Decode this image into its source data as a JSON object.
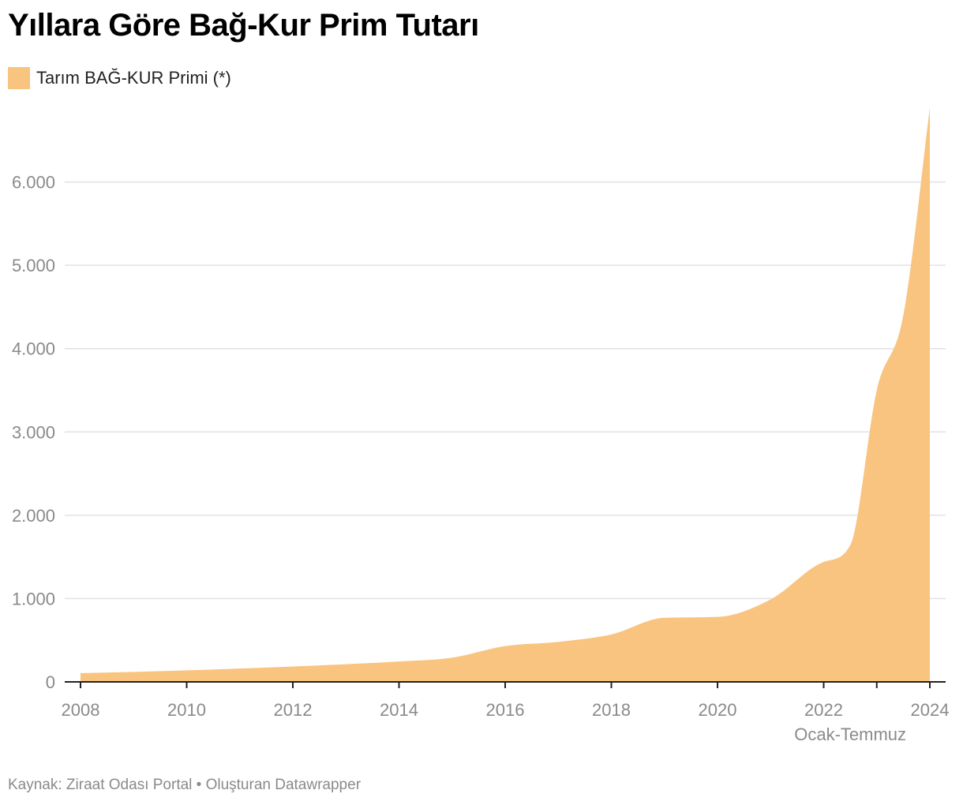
{
  "title": "Yıllara Göre Bağ-Kur Prim Tutarı",
  "legend": {
    "label": "Tarım BAĞ-KUR Primi (*)",
    "color": "#f9c47f"
  },
  "footer": "Kaynak: Ziraat Odası Portal • Oluşturan Datawrapper",
  "chart_data": {
    "type": "area",
    "title": "Yıllara Göre Bağ-Kur Prim Tutarı",
    "xlabel": "",
    "ylabel": "",
    "series": [
      {
        "name": "Tarım BAĞ-KUR Primi (*)",
        "color": "#f9c47f",
        "points": [
          {
            "x": 2008,
            "y": 105
          },
          {
            "x": 2009,
            "y": 120
          },
          {
            "x": 2010,
            "y": 138
          },
          {
            "x": 2011,
            "y": 160
          },
          {
            "x": 2012,
            "y": 185
          },
          {
            "x": 2013,
            "y": 212
          },
          {
            "x": 2014,
            "y": 245
          },
          {
            "x": 2015,
            "y": 290
          },
          {
            "x": 2016,
            "y": 430
          },
          {
            "x": 2017,
            "y": 480
          },
          {
            "x": 2018,
            "y": 570
          },
          {
            "x": 2019,
            "y": 770
          },
          {
            "x": 2020,
            "y": 780
          },
          {
            "x": 2021,
            "y": 990
          },
          {
            "x": 2022,
            "y": 1440
          },
          {
            "x": 2022.5,
            "y": 1640
          },
          {
            "x": 2023,
            "y": 3500
          },
          {
            "x": 2023.5,
            "y": 4400
          },
          {
            "x": 2024,
            "y": 6890
          }
        ]
      }
    ],
    "x_axis": {
      "ticks": [
        2008,
        2010,
        2012,
        2014,
        2016,
        2018,
        2020,
        2022,
        2024
      ],
      "tick_labels": [
        "2008",
        "2010",
        "2012",
        "2014",
        "2016",
        "2018",
        "2020",
        "2022",
        "2024"
      ],
      "extra_ticks": [
        2023
      ],
      "sublabel": {
        "text": "Ocak-Temmuz",
        "x": 2022.5
      }
    },
    "y_axis": {
      "ticks": [
        0,
        1000,
        2000,
        3000,
        4000,
        5000,
        6000
      ],
      "tick_labels": [
        "0",
        "1.000",
        "2.000",
        "3.000",
        "4.000",
        "5.000",
        "6.000"
      ]
    },
    "xlim": [
      2008,
      2024
    ],
    "ylim": [
      0,
      7000
    ],
    "grid": true
  }
}
